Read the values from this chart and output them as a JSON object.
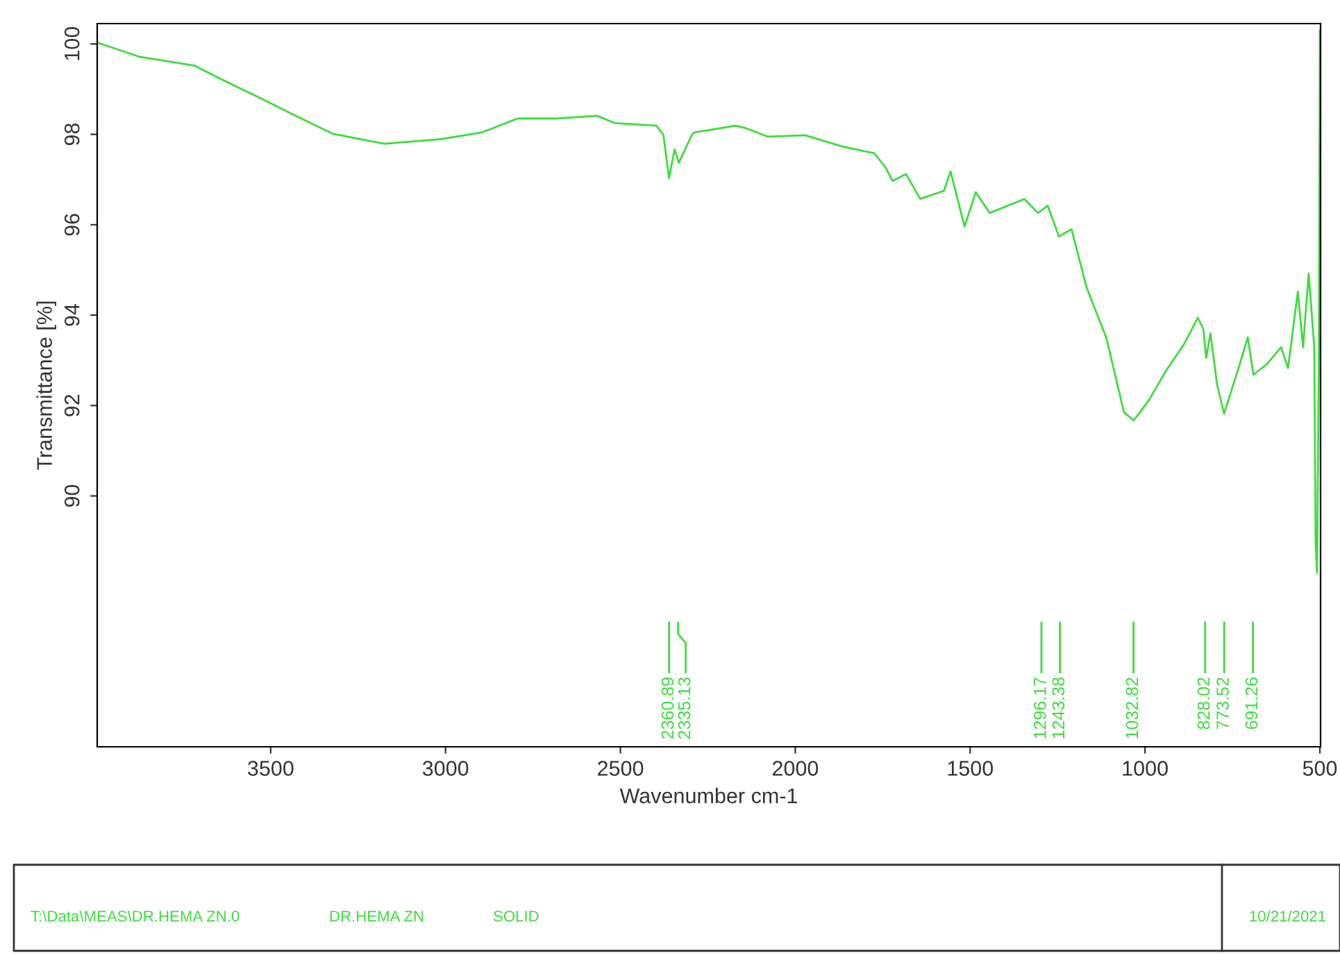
{
  "chart_data": {
    "type": "line",
    "xlabel": "Wavenumber cm-1",
    "ylabel": "Transmittance [%]",
    "xlim": [
      3996,
      498
    ],
    "ylim": [
      84.45,
      100.45
    ],
    "xticks": [
      3500,
      3000,
      2500,
      2000,
      1500,
      1000,
      500
    ],
    "yticks": [
      90,
      92,
      94,
      96,
      98,
      100
    ],
    "grid": false,
    "marker": "none",
    "line_style": "solid",
    "series": [
      {
        "color": "#3ddc3d",
        "x": [
          3996,
          3877,
          3718,
          3639,
          3532,
          3429,
          3321,
          3175,
          3016,
          2897,
          2794,
          2687,
          2567,
          2516,
          2397,
          2377,
          2361,
          2345,
          2333,
          2298,
          2290,
          2171,
          2143,
          2079,
          1972,
          1865,
          1774,
          1742,
          1722,
          1683,
          1643,
          1575,
          1556,
          1516,
          1484,
          1444,
          1345,
          1306,
          1278,
          1246,
          1210,
          1167,
          1111,
          1060,
          1032,
          988,
          940,
          889,
          849,
          833,
          825,
          813,
          794,
          774,
          730,
          706,
          690,
          651,
          611,
          591,
          563,
          548,
          532,
          516,
          512,
          508,
          503,
          500
        ],
        "values": [
          100.03,
          99.72,
          99.52,
          99.21,
          98.81,
          98.41,
          98.01,
          97.79,
          97.89,
          98.04,
          98.35,
          98.35,
          98.41,
          98.25,
          98.19,
          97.99,
          97.03,
          97.67,
          97.37,
          97.95,
          98.04,
          98.19,
          98.14,
          97.95,
          97.98,
          97.73,
          97.58,
          97.27,
          96.97,
          97.12,
          96.57,
          96.75,
          97.18,
          95.96,
          96.72,
          96.26,
          96.57,
          96.26,
          96.42,
          95.74,
          95.9,
          94.61,
          93.51,
          91.85,
          91.67,
          92.13,
          92.77,
          93.35,
          93.94,
          93.69,
          93.05,
          93.6,
          92.47,
          91.82,
          92.89,
          93.51,
          92.68,
          92.92,
          93.29,
          92.83,
          94.52,
          93.29,
          94.92,
          93.29,
          88.91,
          88.3,
          93.0,
          100.3
        ]
      }
    ],
    "annotations": [
      {
        "text": "2360.89",
        "x": 2360.89
      },
      {
        "text": "2335.13",
        "x": 2335.13
      },
      {
        "text": "1296.17",
        "x": 1296.17
      },
      {
        "text": "1243.38",
        "x": 1243.38
      },
      {
        "text": "1032.82",
        "x": 1032.82
      },
      {
        "text": "828.02",
        "x": 828.02
      },
      {
        "text": "773.52",
        "x": 773.52
      },
      {
        "text": "691.26",
        "x": 691.26
      },
      "T:\\Data\\MEAS\\DR.HEMA ZN.0",
      "DR.HEMA ZN",
      "SOLID",
      "10/21/2021"
    ]
  }
}
